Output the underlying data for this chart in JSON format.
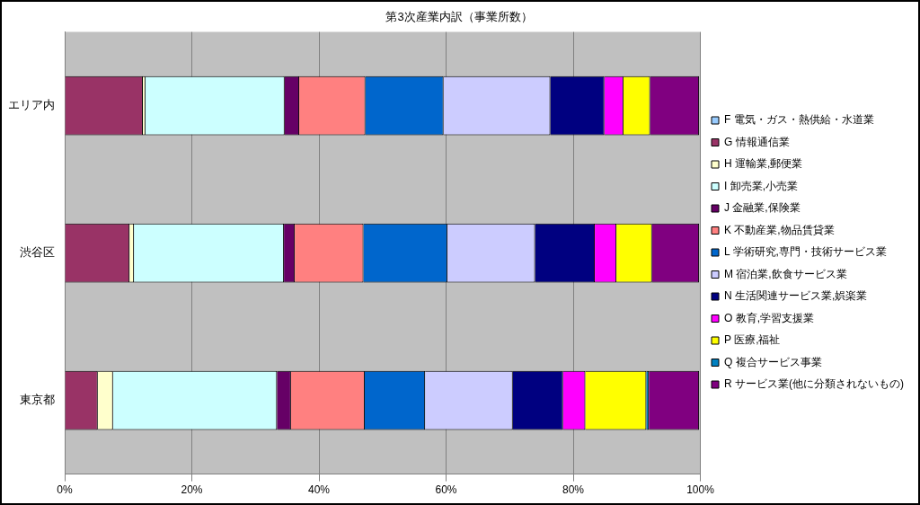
{
  "chart_data": {
    "type": "bar",
    "title": "第3次産業内訳（事業所数）",
    "orientation": "horizontal",
    "stacked": true,
    "categories": [
      "エリア内",
      "渋谷区",
      "東京都"
    ],
    "series": [
      {
        "name": "F 電気・ガス・熱供給・水道業",
        "color": "#99ccff",
        "values": [
          null,
          null,
          null
        ]
      },
      {
        "name": "G 情報通信業",
        "color": "#993366",
        "values": [
          12.3,
          10.2,
          5.2
        ]
      },
      {
        "name": "H 運輸業,郵便業",
        "color": "#ffffcc",
        "values": [
          0.4,
          0.7,
          2.4
        ]
      },
      {
        "name": "I 卸売業,小売業",
        "color": "#ccffff",
        "values": [
          21.9,
          23.6,
          25.8
        ]
      },
      {
        "name": "J 金融業,保険業",
        "color": "#660066",
        "values": [
          2.3,
          1.7,
          2.2
        ]
      },
      {
        "name": "K 不動産業,物品賃貸業",
        "color": "#ff8080",
        "values": [
          10.4,
          10.8,
          11.6
        ]
      },
      {
        "name": "L 学術研究,専門・技術サービス業",
        "color": "#0066cc",
        "values": [
          12.3,
          13.2,
          9.5
        ]
      },
      {
        "name": "M 宿泊業,飲食サービス業",
        "color": "#ccccff",
        "values": [
          16.8,
          13.8,
          13.8
        ]
      },
      {
        "name": "N 生活関連サービス業,娯楽業",
        "color": "#000080",
        "values": [
          8.5,
          9.4,
          7.9
        ]
      },
      {
        "name": "O 教育,学習支援業",
        "color": "#ff00ff",
        "values": [
          3.0,
          3.4,
          3.5
        ]
      },
      {
        "name": "P 医療,福祉",
        "color": "#ffff00",
        "values": [
          4.2,
          5.6,
          9.6
        ]
      },
      {
        "name": "Q 複合サービス事業",
        "color": "#0080c0",
        "values": [
          null,
          null,
          0.4
        ]
      },
      {
        "name": "R サービス業(他に分類されないもの)",
        "color": "#800080",
        "values": [
          7.7,
          7.4,
          7.9
        ]
      }
    ],
    "xlim": [
      0,
      100
    ],
    "xticks": [
      {
        "value": 0,
        "label": "0%"
      },
      {
        "value": 20,
        "label": "20%"
      },
      {
        "value": 40,
        "label": "40%"
      },
      {
        "value": 60,
        "label": "60%"
      },
      {
        "value": 80,
        "label": "80%"
      },
      {
        "value": 100,
        "label": "100%"
      }
    ],
    "grid": "x",
    "legend": "right"
  }
}
